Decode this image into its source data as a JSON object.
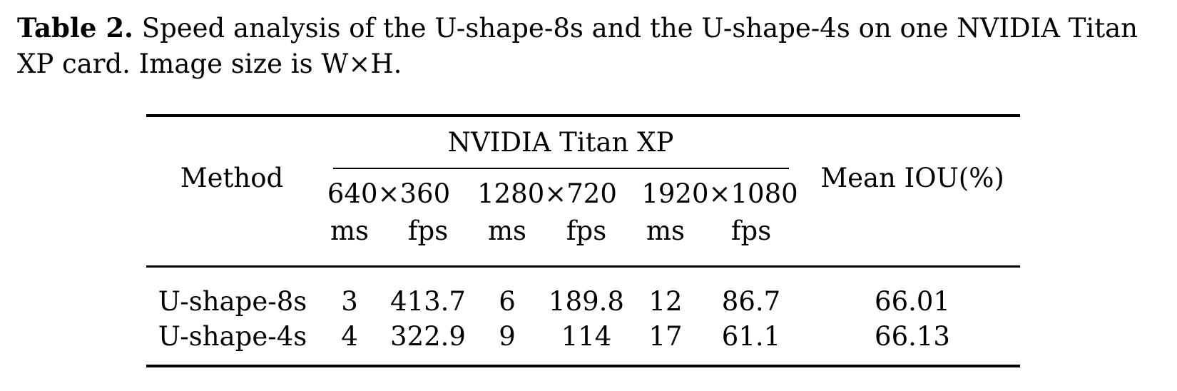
{
  "caption": {
    "label": "Table 2.",
    "text": "Speed analysis of the U-shape-8s and the U-shape-4s on one NVIDIA Titan XP card. Image size is W×H."
  },
  "table": {
    "method_header": "Method",
    "group_header": "NVIDIA Titan XP",
    "resolutions": [
      "640×360",
      "1280×720",
      "1920×1080"
    ],
    "sub_headers": [
      "ms",
      "fps",
      "ms",
      "fps",
      "ms",
      "fps"
    ],
    "miou_header": "Mean IOU(%)",
    "rows": [
      {
        "method": "U-shape-8s",
        "values": [
          "3",
          "413.7",
          "6",
          "189.8",
          "12",
          "86.7"
        ],
        "miou": "66.01"
      },
      {
        "method": "U-shape-4s",
        "values": [
          "4",
          "322.9",
          "9",
          "114",
          "17",
          "61.1"
        ],
        "miou": "66.13"
      }
    ]
  }
}
